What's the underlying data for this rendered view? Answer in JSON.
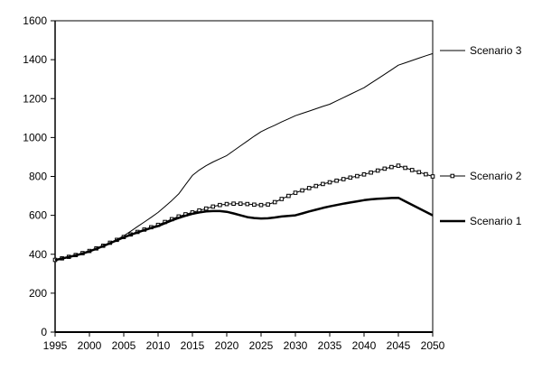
{
  "colors": {
    "background": "#ffffff",
    "line": "#000000",
    "text": "#000000",
    "marker_fill": "#ffffff"
  },
  "chart_data": {
    "type": "line",
    "title": "",
    "xlabel": "",
    "ylabel": "",
    "grid": false,
    "legend_position": "right",
    "ylim": [
      0,
      1600
    ],
    "ytick_step": 200,
    "ytick_labels": [
      "0",
      "200",
      "400",
      "600",
      "800",
      "1000",
      "1200",
      "1400",
      "1600"
    ],
    "xtick_labels": [
      "1995",
      "2000",
      "2005",
      "2010",
      "2015",
      "2020",
      "2025",
      "2030",
      "2035",
      "2040",
      "2045",
      "2050"
    ],
    "x": [
      1995,
      1996,
      1997,
      1998,
      1999,
      2000,
      2001,
      2002,
      2003,
      2004,
      2005,
      2006,
      2007,
      2008,
      2009,
      2010,
      2011,
      2012,
      2013,
      2014,
      2015,
      2016,
      2017,
      2018,
      2019,
      2020,
      2021,
      2022,
      2023,
      2024,
      2025,
      2026,
      2027,
      2028,
      2029,
      2030,
      2031,
      2032,
      2033,
      2034,
      2035,
      2036,
      2037,
      2038,
      2039,
      2040,
      2041,
      2042,
      2043,
      2044,
      2045,
      2046,
      2047,
      2048,
      2049,
      2050
    ],
    "series": [
      {
        "name": "Scenario 3",
        "line": "thin",
        "marker": "none",
        "values": [
          370,
          378,
          386,
          395,
          405,
          416,
          429,
          443,
          458,
          476,
          495,
          518,
          542,
          566,
          590,
          615,
          645,
          676,
          710,
          758,
          805,
          833,
          855,
          874,
          891,
          907,
          932,
          957,
          982,
          1007,
          1030,
          1047,
          1063,
          1080,
          1096,
          1112,
          1124,
          1136,
          1148,
          1160,
          1171,
          1188,
          1205,
          1222,
          1239,
          1256,
          1279,
          1302,
          1325,
          1348,
          1372,
          1384,
          1396,
          1408,
          1420,
          1431
        ]
      },
      {
        "name": "Scenario 2",
        "line": "thin",
        "marker": "square",
        "values": [
          371,
          379,
          387,
          396,
          406,
          417,
          430,
          444,
          459,
          474,
          489,
          502,
          515,
          527,
          539,
          551,
          566,
          580,
          594,
          605,
          615,
          625,
          635,
          645,
          653,
          658,
          660,
          660,
          658,
          655,
          653,
          656,
          668,
          684,
          700,
          716,
          728,
          740,
          751,
          761,
          770,
          778,
          786,
          794,
          802,
          810,
          820,
          830,
          840,
          848,
          855,
          844,
          833,
          822,
          811,
          800
        ]
      },
      {
        "name": "Scenario 1",
        "line": "thick",
        "marker": "none",
        "values": [
          370,
          378,
          386,
          394,
          404,
          415,
          428,
          442,
          457,
          472,
          487,
          500,
          512,
          524,
          535,
          545,
          560,
          574,
          587,
          598,
          608,
          615,
          620,
          622,
          622,
          618,
          610,
          600,
          591,
          586,
          584,
          585,
          589,
          594,
          597,
          600,
          610,
          620,
          629,
          638,
          646,
          653,
          660,
          666,
          672,
          678,
          682,
          685,
          687,
          689,
          690,
          672,
          654,
          636,
          618,
          600
        ]
      }
    ],
    "legend": [
      {
        "label": "Scenario 3",
        "sample": "thin-line"
      },
      {
        "label": "Scenario 2",
        "sample": "marker-line"
      },
      {
        "label": "Scenario 1",
        "sample": "thick-line"
      }
    ]
  }
}
